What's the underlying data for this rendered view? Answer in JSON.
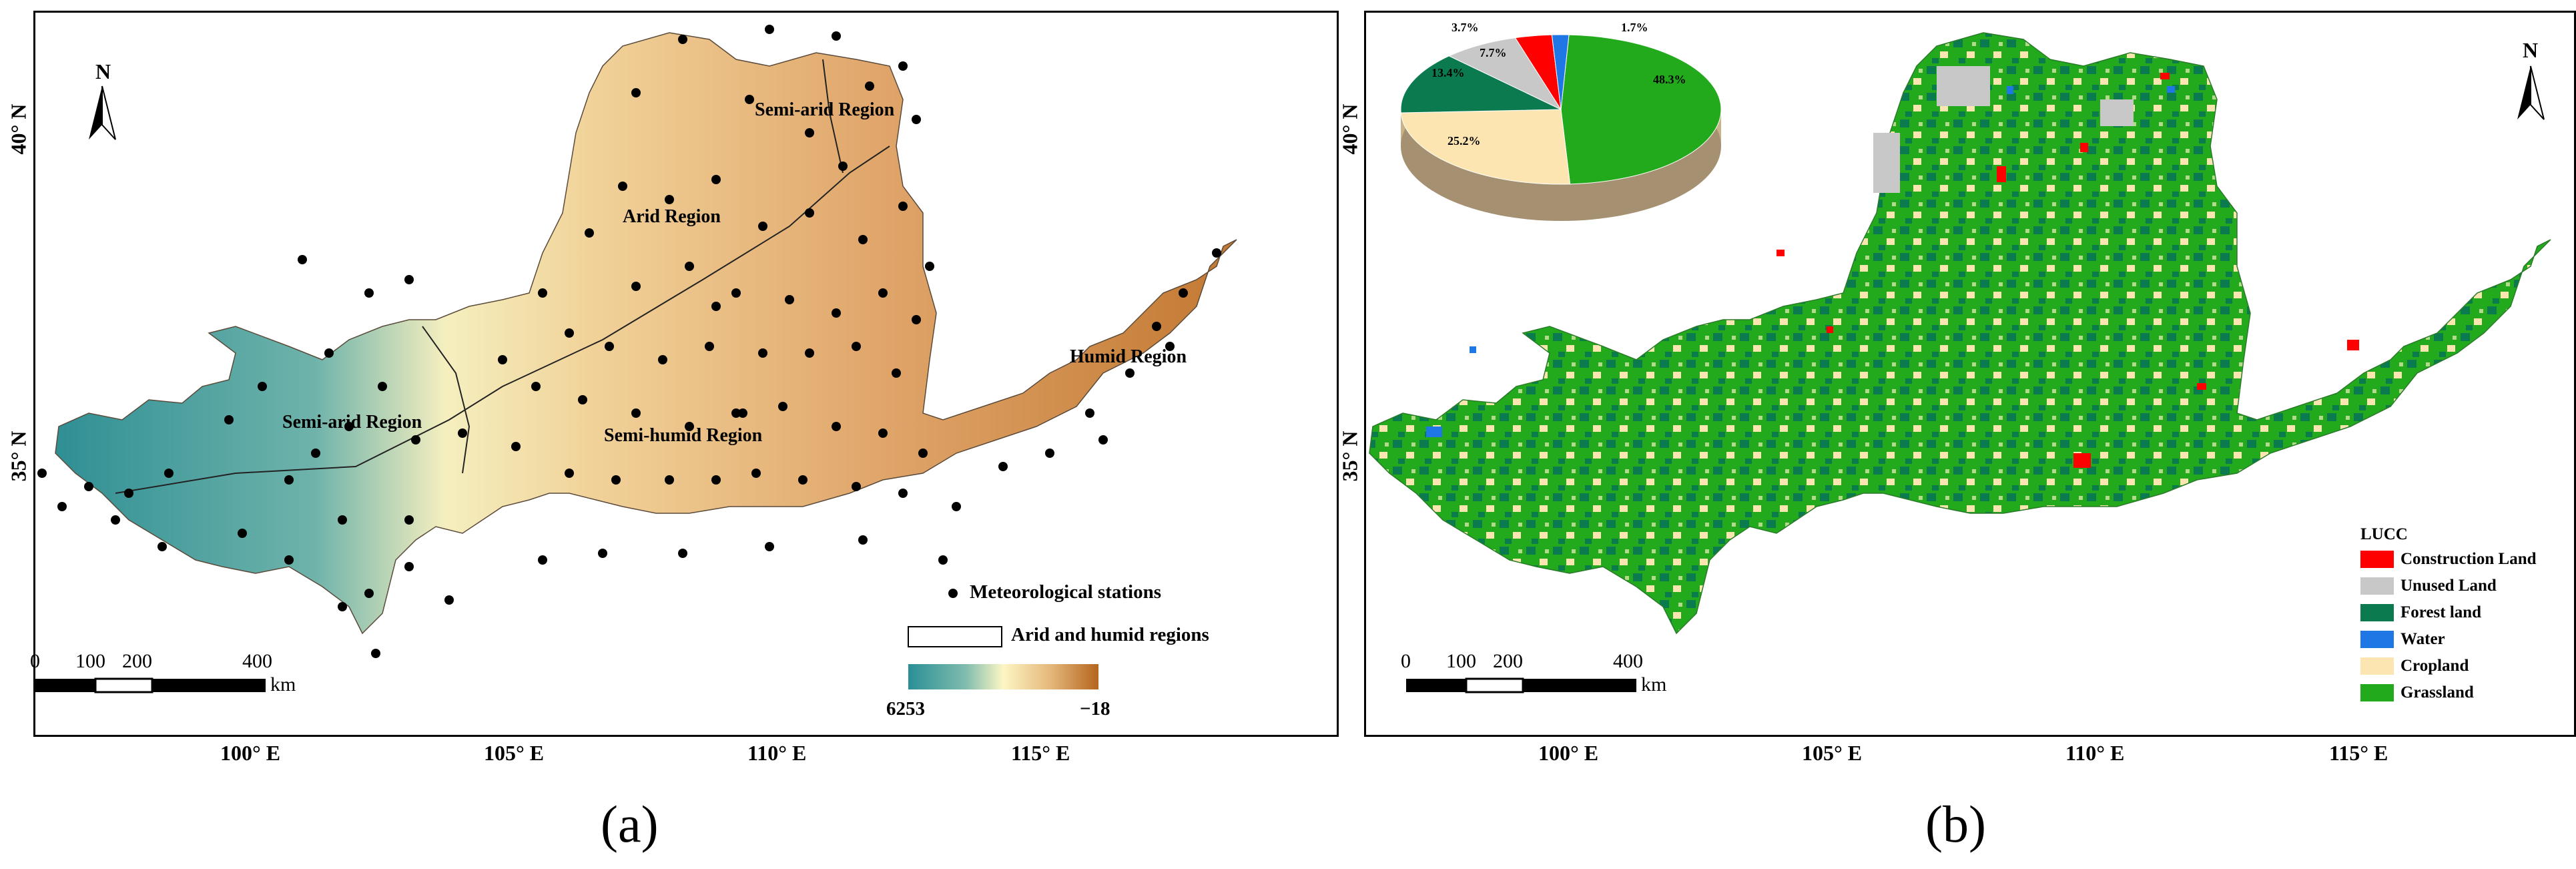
{
  "panel_a": {
    "caption": "(a)",
    "north": "N",
    "lat_labels": [
      "40° N",
      "35° N"
    ],
    "lon_labels": [
      "100° E",
      "105° E",
      "110° E",
      "115° E"
    ],
    "region_labels": [
      "Semi-arid Region",
      "Arid Region",
      "Humid Region",
      "Semi-arid Region",
      "Semi-humid Region"
    ],
    "legend": {
      "stations": "Meteorological stations",
      "regions": "Arid and humid regions",
      "elev_max": "6253",
      "elev_min": "−18"
    },
    "scale": {
      "ticks": [
        "0",
        "100",
        "200",
        "400"
      ],
      "unit": "km"
    },
    "colors": {
      "low": "#2a8f96",
      "mid": "#fdf6c4",
      "high": "#b5651d"
    }
  },
  "panel_b": {
    "caption": "(b)",
    "north": "N",
    "lat_labels": [
      "40° N",
      "35° N"
    ],
    "lon_labels": [
      "100° E",
      "105° E",
      "110° E",
      "115° E"
    ],
    "legend_title": "LUCC",
    "classes": [
      {
        "name": "Construction Land",
        "color": "#ff0000"
      },
      {
        "name": "Unused Land",
        "color": "#c8c8c8"
      },
      {
        "name": "Forest land",
        "color": "#0b7a4f"
      },
      {
        "name": "Water",
        "color": "#1f77e5"
      },
      {
        "name": "Cropland",
        "color": "#fce5b0"
      },
      {
        "name": "Grassland",
        "color": "#22aa1c"
      }
    ],
    "pie": [
      {
        "label": "48.3%",
        "value": 48.3,
        "color": "#22aa1c"
      },
      {
        "label": "25.2%",
        "value": 25.2,
        "color": "#fce5b0"
      },
      {
        "label": "13.4%",
        "value": 13.4,
        "color": "#0b7a4f"
      },
      {
        "label": "7.7%",
        "value": 7.7,
        "color": "#c8c8c8"
      },
      {
        "label": "3.7%",
        "value": 3.7,
        "color": "#ff0000"
      },
      {
        "label": "1.7%",
        "value": 1.7,
        "color": "#1f77e5"
      }
    ],
    "scale": {
      "ticks": [
        "0",
        "100",
        "200",
        "400"
      ],
      "unit": "km"
    }
  }
}
